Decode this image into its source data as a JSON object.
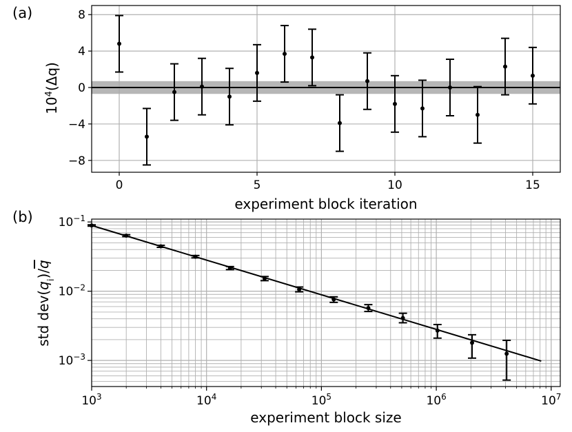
{
  "colors": {
    "grid": "#b0b0b0",
    "band": "#a9a9a9",
    "data": "#000000"
  },
  "chart_data": [
    {
      "type": "scatter",
      "panel_label": "(a)",
      "xlabel": "experiment block iteration",
      "ylabel_base": "10",
      "ylabel_exp": "4",
      "ylabel_rest": "(Δq)",
      "xlim": [
        -1,
        16
      ],
      "ylim": [
        -9.3,
        9.0
      ],
      "xticks": [
        0,
        5,
        10,
        15
      ],
      "xtick_labels": [
        "0",
        "5",
        "10",
        "15"
      ],
      "yticks": [
        8,
        4,
        0,
        -4,
        -8
      ],
      "ytick_labels": [
        "8",
        "4",
        "0",
        "−4",
        "−8"
      ],
      "grid": true,
      "reference_line": 0,
      "band": [
        -0.7,
        0.7
      ],
      "points": [
        {
          "x": 0,
          "y": 4.8,
          "err": 3.1
        },
        {
          "x": 1,
          "y": -5.4,
          "err": 3.1
        },
        {
          "x": 2,
          "y": -0.5,
          "err": 3.1
        },
        {
          "x": 3,
          "y": 0.1,
          "err": 3.1
        },
        {
          "x": 4,
          "y": -1.0,
          "err": 3.1
        },
        {
          "x": 5,
          "y": 1.6,
          "err": 3.1
        },
        {
          "x": 6,
          "y": 3.7,
          "err": 3.1
        },
        {
          "x": 7,
          "y": 3.3,
          "err": 3.1
        },
        {
          "x": 8,
          "y": -3.9,
          "err": 3.1
        },
        {
          "x": 9,
          "y": 0.7,
          "err": 3.1
        },
        {
          "x": 10,
          "y": -1.8,
          "err": 3.1
        },
        {
          "x": 11,
          "y": -2.3,
          "err": 3.1
        },
        {
          "x": 12,
          "y": 0.0,
          "err": 3.1
        },
        {
          "x": 13,
          "y": -3.0,
          "err": 3.1
        },
        {
          "x": 14,
          "y": 2.3,
          "err": 3.1
        },
        {
          "x": 15,
          "y": 1.3,
          "err": 3.1
        }
      ]
    },
    {
      "type": "scatter",
      "scale": "log-log",
      "panel_label": "(b)",
      "xlabel": "experiment block size",
      "ylabel": "std dev(q_i)/q̄",
      "ylabel_main": "std dev(",
      "ylabel_var": "q",
      "ylabel_sub": "i",
      "ylabel_mid": ")/",
      "ylabel_bar": "q",
      "xlim": [
        1000,
        12000000
      ],
      "ylim": [
        0.00042,
        0.11
      ],
      "xticks": [
        1000,
        10000,
        100000,
        1000000,
        10000000
      ],
      "xtick_labels": [
        {
          "base": "10",
          "exp": "3"
        },
        {
          "base": "10",
          "exp": "4"
        },
        {
          "base": "10",
          "exp": "5"
        },
        {
          "base": "10",
          "exp": "6"
        },
        {
          "base": "10",
          "exp": "7"
        }
      ],
      "yticks": [
        0.1,
        0.01,
        0.001
      ],
      "ytick_labels": [
        {
          "base": "10",
          "exp": "−1"
        },
        {
          "base": "10",
          "exp": "−2"
        },
        {
          "base": "10",
          "exp": "−3"
        }
      ],
      "grid": true,
      "fit_line": {
        "x": [
          1000,
          8192000
        ],
        "y": [
          0.089,
          0.00098
        ]
      },
      "points": [
        {
          "x": 1000,
          "y": 0.089,
          "lo": 0.087,
          "hi": 0.091
        },
        {
          "x": 2000,
          "y": 0.0635,
          "lo": 0.0615,
          "hi": 0.0655
        },
        {
          "x": 4000,
          "y": 0.0445,
          "lo": 0.043,
          "hi": 0.046
        },
        {
          "x": 8000,
          "y": 0.0315,
          "lo": 0.0303,
          "hi": 0.0328
        },
        {
          "x": 16000,
          "y": 0.0216,
          "lo": 0.0205,
          "hi": 0.0227
        },
        {
          "x": 32000,
          "y": 0.0152,
          "lo": 0.0142,
          "hi": 0.0163
        },
        {
          "x": 64000,
          "y": 0.0106,
          "lo": 0.0098,
          "hi": 0.0115
        },
        {
          "x": 128000,
          "y": 0.0076,
          "lo": 0.0069,
          "hi": 0.0083
        },
        {
          "x": 256000,
          "y": 0.0057,
          "lo": 0.0051,
          "hi": 0.0064
        },
        {
          "x": 512000,
          "y": 0.0041,
          "lo": 0.0035,
          "hi": 0.0048
        },
        {
          "x": 1024000,
          "y": 0.0027,
          "lo": 0.0021,
          "hi": 0.0033
        },
        {
          "x": 2048000,
          "y": 0.0018,
          "lo": 0.00108,
          "hi": 0.00235
        },
        {
          "x": 4096000,
          "y": 0.00125,
          "lo": 0.00052,
          "hi": 0.00195
        }
      ]
    }
  ]
}
